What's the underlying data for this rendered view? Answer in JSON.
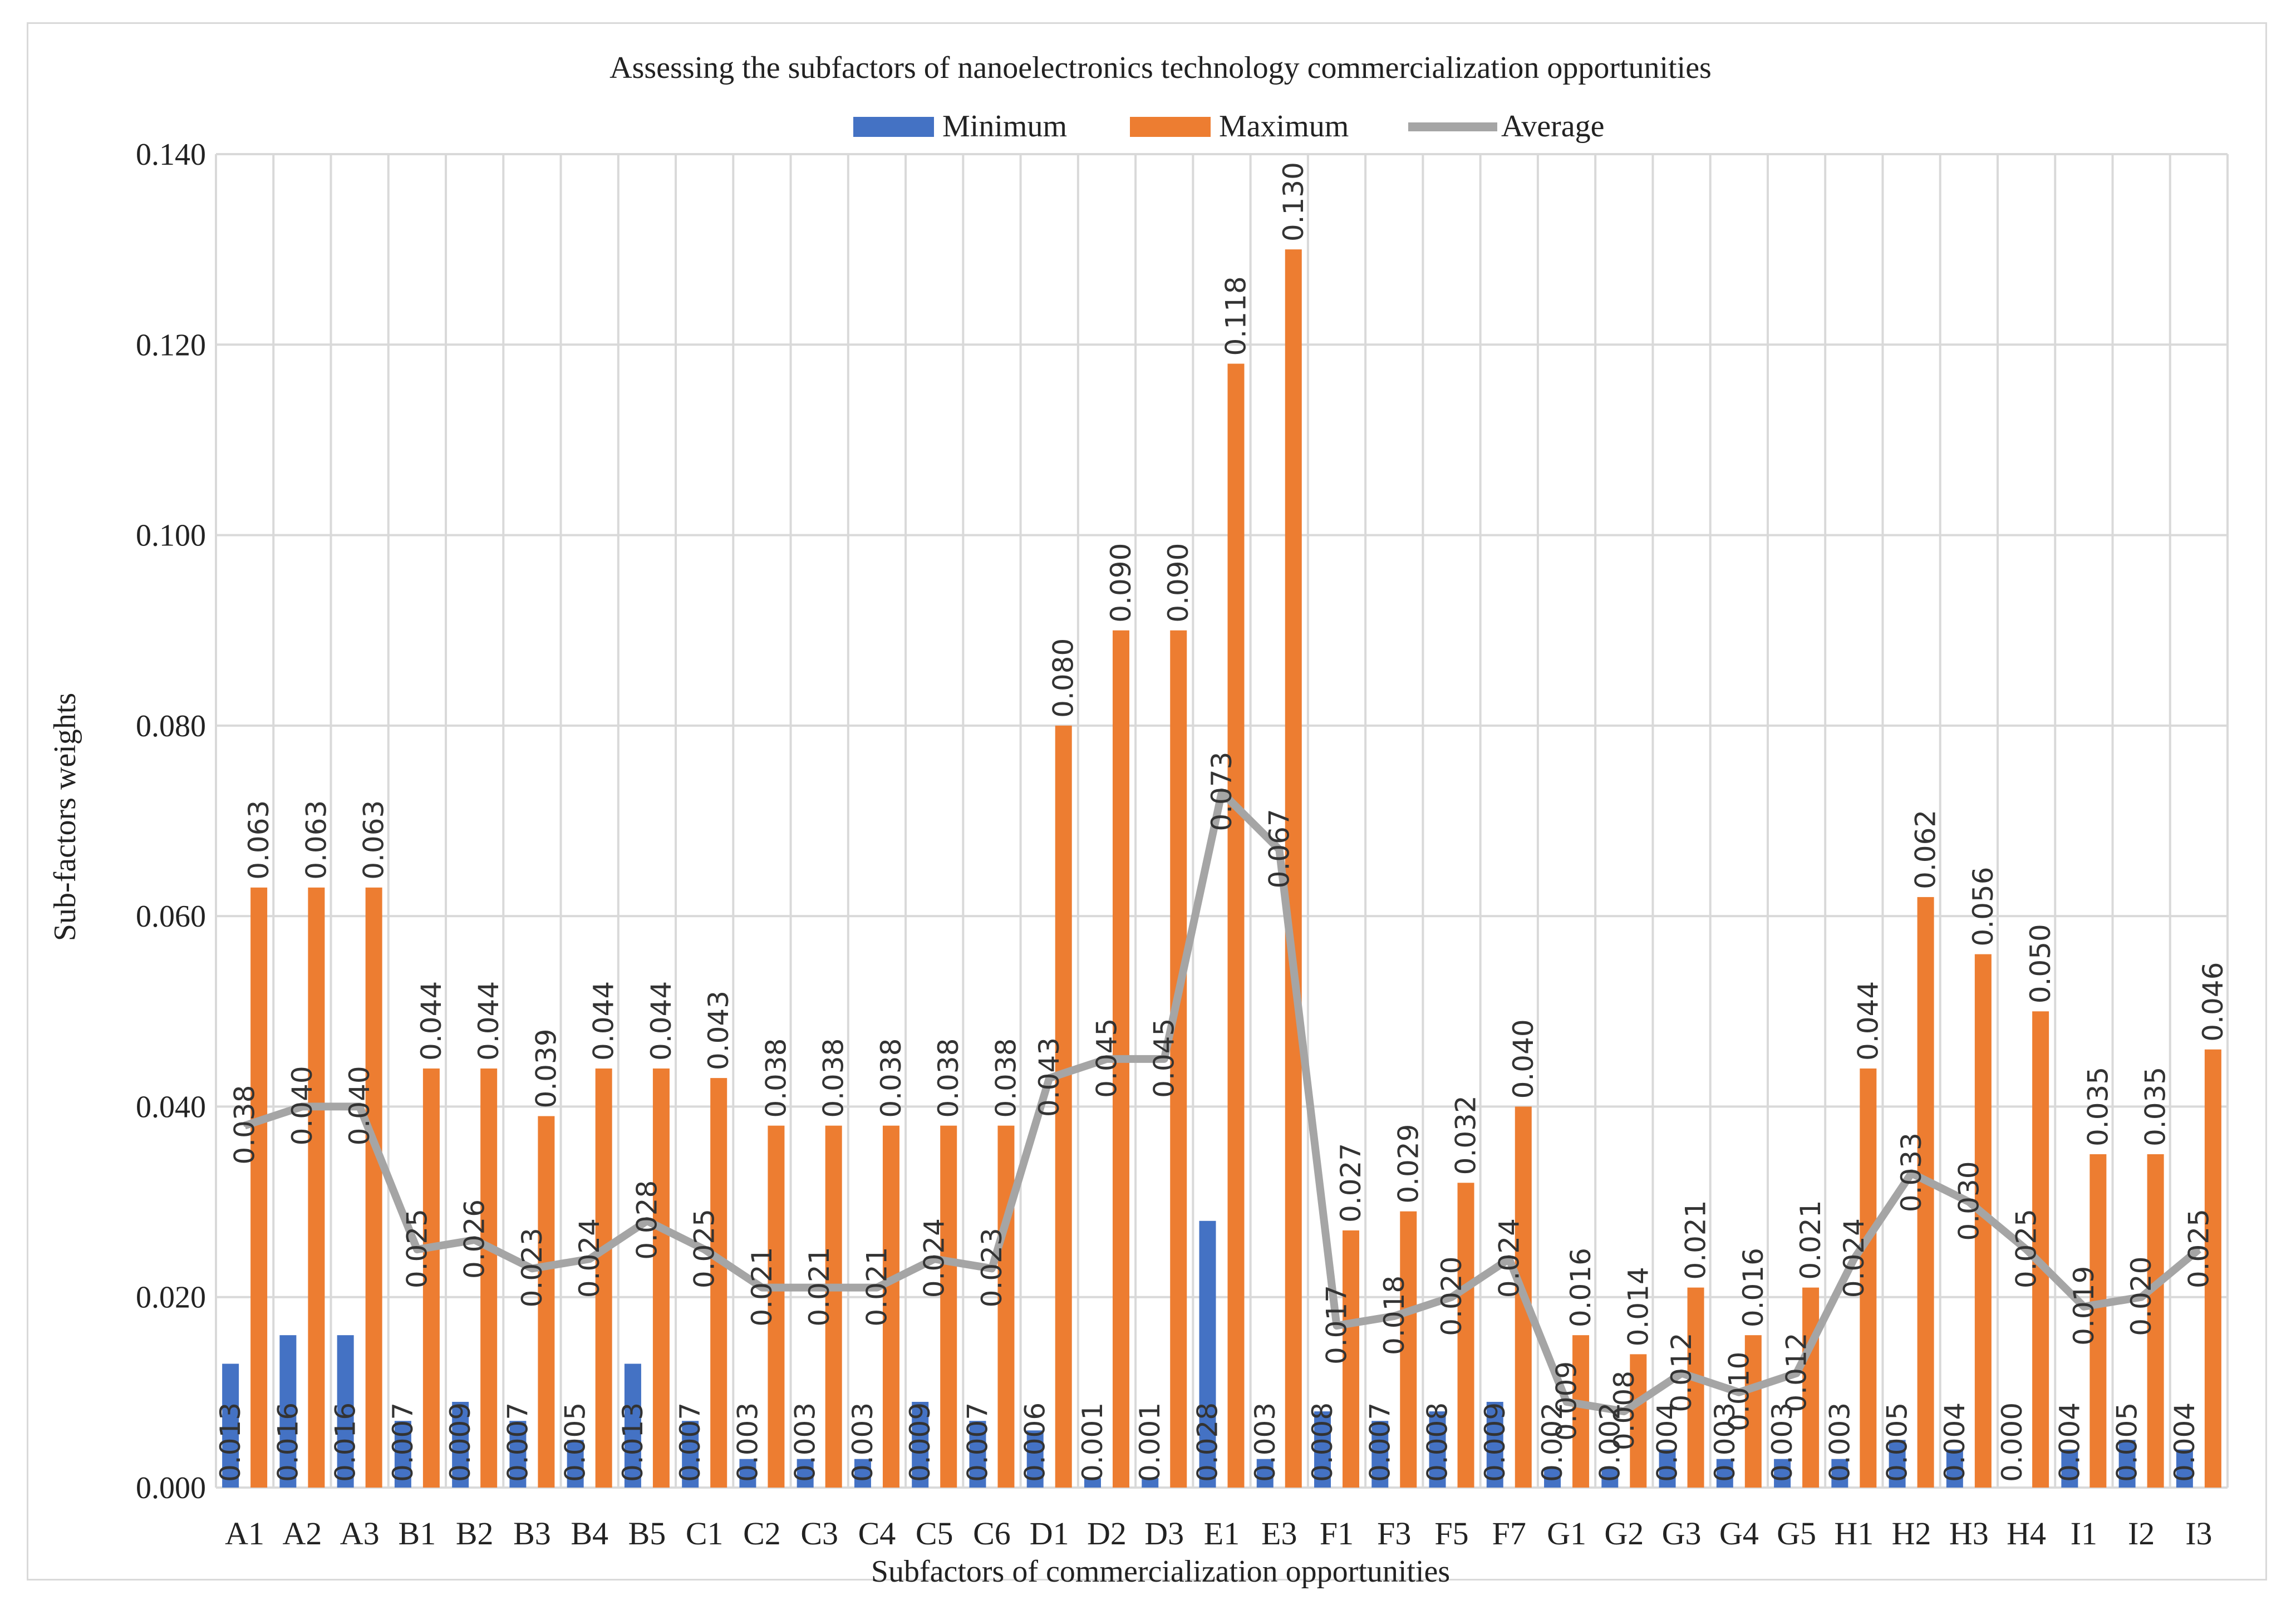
{
  "chart_data": {
    "type": "bar",
    "title": "Assessing the subfactors of nanoelectronics technology commercialization opportunities",
    "xlabel": "Subfactors of commercialization opportunities",
    "ylabel": "Sub-factors weights",
    "ylim": [
      0,
      0.14
    ],
    "yticks": [
      "0.000",
      "0.020",
      "0.040",
      "0.060",
      "0.080",
      "0.100",
      "0.120",
      "0.140"
    ],
    "legend_position": "top",
    "categories": [
      "A1",
      "A2",
      "A3",
      "B1",
      "B2",
      "B3",
      "B4",
      "B5",
      "C1",
      "C2",
      "C3",
      "C4",
      "C5",
      "C6",
      "D1",
      "D2",
      "D3",
      "E1",
      "E3",
      "F1",
      "F3",
      "F5",
      "F7",
      "G1",
      "G2",
      "G3",
      "G4",
      "G5",
      "H1",
      "H2",
      "H3",
      "H4",
      "I1",
      "I2",
      "I3"
    ],
    "series": [
      {
        "name": "Minimum",
        "kind": "bar",
        "color": "#4472c4",
        "values": [
          0.013,
          0.016,
          0.016,
          0.007,
          0.009,
          0.007,
          0.005,
          0.013,
          0.007,
          0.003,
          0.003,
          0.003,
          0.009,
          0.007,
          0.006,
          0.001,
          0.001,
          0.028,
          0.003,
          0.008,
          0.007,
          0.008,
          0.009,
          0.002,
          0.002,
          0.004,
          0.003,
          0.003,
          0.003,
          0.005,
          0.004,
          0.0,
          0.004,
          0.005,
          0.004
        ],
        "labels": [
          "0.013",
          "0.016",
          "0.016",
          "0.007",
          "0.009",
          "0.007",
          "0.005",
          "0.013",
          "0.007",
          "0.003",
          "0.003",
          "0.003",
          "0.009",
          "0.007",
          "0.006",
          "0.001",
          "0.001",
          "0.028",
          "0.003",
          "0.008",
          "0.007",
          "0.008",
          "0.009",
          "0.002",
          "0.002",
          "0.004",
          "0.003",
          "0.003",
          "0.003",
          "0.005",
          "0.004",
          "0.000",
          "0.004",
          "0.005",
          "0.004"
        ]
      },
      {
        "name": "Maximum",
        "kind": "bar",
        "color": "#ed7d31",
        "values": [
          0.063,
          0.063,
          0.063,
          0.044,
          0.044,
          0.039,
          0.044,
          0.044,
          0.043,
          0.038,
          0.038,
          0.038,
          0.038,
          0.038,
          0.08,
          0.09,
          0.09,
          0.118,
          0.13,
          0.027,
          0.029,
          0.032,
          0.04,
          0.016,
          0.014,
          0.021,
          0.016,
          0.021,
          0.044,
          0.062,
          0.056,
          0.05,
          0.035,
          0.035,
          0.046
        ],
        "labels": [
          "0.063",
          "0.063",
          "0.063",
          "0.044",
          "0.044",
          "0.039",
          "0.044",
          "0.044",
          "0.043",
          "0.038",
          "0.038",
          "0.038",
          "0.038",
          "0.038",
          "0.080",
          "0.090",
          "0.090",
          "0.118",
          "0.130",
          "0.027",
          "0.029",
          "0.032",
          "0.040",
          "0.016",
          "0.014",
          "0.021",
          "0.016",
          "0.021",
          "0.044",
          "0.062",
          "0.056",
          "0.050",
          "0.035",
          "0.035",
          "0.046"
        ]
      },
      {
        "name": "Average",
        "kind": "line",
        "color": "#a5a5a5",
        "values": [
          0.038,
          0.04,
          0.04,
          0.025,
          0.026,
          0.023,
          0.024,
          0.028,
          0.025,
          0.021,
          0.021,
          0.021,
          0.024,
          0.023,
          0.043,
          0.045,
          0.045,
          0.073,
          0.067,
          0.017,
          0.018,
          0.02,
          0.024,
          0.009,
          0.008,
          0.012,
          0.01,
          0.012,
          0.024,
          0.033,
          0.03,
          0.025,
          0.019,
          0.02,
          0.025
        ],
        "labels": [
          "0.038",
          "0.040",
          "0.040",
          "0.025",
          "0.026",
          "0.023",
          "0.024",
          "0.028",
          "0.025",
          "0.021",
          "0.021",
          "0.021",
          "0.024",
          "0.023",
          "0.043",
          "0.045",
          "0.045",
          "0.073",
          "0.067",
          "0.017",
          "0.018",
          "0.020",
          "0.024",
          "0.009",
          "0.008",
          "0.012",
          "0.010",
          "0.012",
          "0.024",
          "0.033",
          "0.030",
          "0.025",
          "0.019",
          "0.020",
          "0.025"
        ]
      }
    ]
  }
}
